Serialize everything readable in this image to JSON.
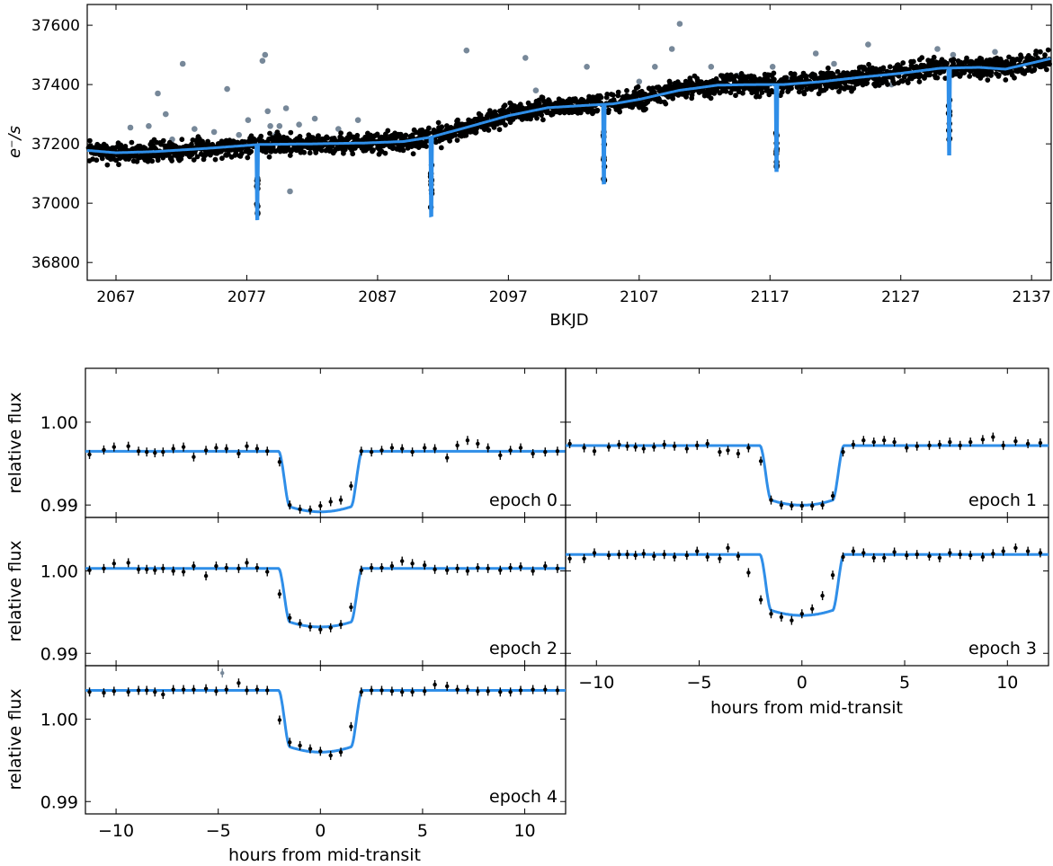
{
  "colors": {
    "model": "#2f8ee8",
    "data": "#000000",
    "outlier": "#778899",
    "axes": "#000000"
  },
  "chart_data": [
    {
      "type": "scatter",
      "title": "",
      "xlabel": "BKJD",
      "ylabel": "e⁻/s",
      "xlim": [
        2064.8,
        2138.5
      ],
      "ylim": [
        36740,
        37670
      ],
      "xticks": [
        2067,
        2077,
        2087,
        2097,
        2107,
        2117,
        2127,
        2137
      ],
      "xtick_labels": [
        "2067",
        "2077",
        "2087",
        "2097",
        "2107",
        "2117",
        "2127",
        "2137"
      ],
      "yticks": [
        36800,
        37000,
        37200,
        37400,
        37600
      ],
      "ytick_labels": [
        "36800",
        "37000",
        "37200",
        "37400",
        "37600"
      ],
      "grid": false,
      "series": [
        {
          "kind": "trend_model_line",
          "x": [
            2064.8,
            2067,
            2070,
            2074,
            2078,
            2082,
            2086,
            2089,
            2091,
            2094,
            2097,
            2100,
            2103,
            2105,
            2107,
            2110,
            2113,
            2116,
            2118,
            2121,
            2124,
            2127,
            2130,
            2133,
            2135,
            2138.5
          ],
          "y": [
            37178,
            37170,
            37174,
            37185,
            37198,
            37200,
            37203,
            37208,
            37222,
            37258,
            37295,
            37322,
            37330,
            37335,
            37350,
            37380,
            37398,
            37400,
            37400,
            37410,
            37425,
            37438,
            37455,
            37458,
            37452,
            37488
          ]
        },
        {
          "kind": "transit_dips",
          "transits": [
            {
              "x": 2077.8,
              "depth": 250
            },
            {
              "x": 2091.1,
              "depth": 265
            },
            {
              "x": 2104.3,
              "depth": 265
            },
            {
              "x": 2117.5,
              "depth": 290
            },
            {
              "x": 2130.7,
              "depth": 290
            }
          ]
        },
        {
          "kind": "outliers",
          "x": [
            2068.1,
            2069.5,
            2070.2,
            2070.8,
            2071.3,
            2072.1,
            2073.0,
            2074.5,
            2075.5,
            2076.4,
            2077.1,
            2078.2,
            2078.4,
            2078.6,
            2078.8,
            2079.2,
            2079.5,
            2080.0,
            2080.3,
            2081.0,
            2082.2,
            2084.0,
            2085.5,
            2093.8,
            2098.3,
            2099.1,
            2103.0,
            2107.0,
            2108.2,
            2109.5,
            2110.1,
            2112.5,
            2114.5,
            2117.2,
            2118.3,
            2120.5,
            2121.9,
            2124.5,
            2126.3,
            2129.8,
            2131.0,
            2134.2
          ],
          "y": [
            37255,
            37260,
            37370,
            37300,
            37215,
            37470,
            37250,
            37240,
            37385,
            37230,
            37280,
            37480,
            37500,
            37310,
            37260,
            37230,
            37260,
            37320,
            37040,
            37265,
            37285,
            37250,
            37280,
            37515,
            37490,
            37380,
            37460,
            37410,
            37460,
            37520,
            37605,
            37460,
            37430,
            37460,
            37420,
            37505,
            37470,
            37535,
            37400,
            37520,
            37500,
            37510
          ]
        }
      ]
    },
    {
      "type": "scatter",
      "title": "",
      "xlabel": "",
      "ylabel": "relative flux",
      "annotation": "epoch 0",
      "xlim": [
        -11.5,
        12
      ],
      "ylim": [
        0.9885,
        1.0065
      ],
      "yticks": [
        0.99,
        1.0
      ],
      "ytick_labels": [
        "0.99",
        "1.00"
      ],
      "xticks": [
        -10,
        -5,
        0,
        5,
        10
      ],
      "model": {
        "baseline": 0.99648,
        "depth": 0.0073,
        "half_duration": 2.0,
        "ingress": 0.5
      },
      "x": [
        -11.3,
        -10.6,
        -10.1,
        -9.4,
        -8.9,
        -8.5,
        -8.1,
        -7.7,
        -7.2,
        -6.7,
        -6.2,
        -5.6,
        -5.1,
        -4.6,
        -4.0,
        -3.6,
        -3.1,
        -2.6,
        -2.0,
        -1.5,
        -1.0,
        -0.5,
        0.0,
        0.5,
        1.0,
        1.5,
        2.0,
        2.5,
        3.0,
        3.5,
        4.0,
        4.5,
        5.1,
        5.6,
        6.2,
        6.7,
        7.2,
        7.7,
        8.2,
        8.8,
        9.3,
        9.8,
        10.4,
        11.0,
        11.6
      ],
      "y": [
        0.9961,
        0.99665,
        0.997,
        0.9971,
        0.9965,
        0.9964,
        0.9963,
        0.9964,
        0.9968,
        0.997,
        0.9958,
        0.9966,
        0.9969,
        0.9968,
        0.9962,
        0.9971,
        0.9968,
        0.9965,
        0.9952,
        0.99,
        0.9895,
        0.9894,
        0.9899,
        0.9904,
        0.9906,
        0.9923,
        0.9965,
        0.9964,
        0.9966,
        0.9969,
        0.9968,
        0.9964,
        0.9969,
        0.9968,
        0.9957,
        0.9972,
        0.9978,
        0.9974,
        0.9969,
        0.996,
        0.9966,
        0.9969,
        0.9962,
        0.9964,
        0.9965
      ]
    },
    {
      "type": "scatter",
      "title": "",
      "xlabel": "",
      "ylabel": "",
      "annotation": "epoch 1",
      "xlim": [
        -11.5,
        12
      ],
      "ylim": [
        0.9885,
        1.0065
      ],
      "yticks": [
        0.99,
        1.0
      ],
      "xticks": [
        -10,
        -5,
        0,
        5,
        10
      ],
      "model": {
        "baseline": 0.99718,
        "depth": 0.0072,
        "half_duration": 2.0,
        "ingress": 0.5
      },
      "x": [
        -11.3,
        -10.6,
        -10.1,
        -9.4,
        -8.9,
        -8.5,
        -8.1,
        -7.7,
        -7.2,
        -6.7,
        -6.2,
        -5.6,
        -5.1,
        -4.6,
        -4.0,
        -3.6,
        -3.1,
        -2.6,
        -2.0,
        -1.5,
        -1.0,
        -0.5,
        0.0,
        0.5,
        1.0,
        1.5,
        2.0,
        2.5,
        3.0,
        3.5,
        4.0,
        4.5,
        5.1,
        5.6,
        6.2,
        6.7,
        7.2,
        7.7,
        8.2,
        8.8,
        9.3,
        9.8,
        10.4,
        11.0,
        11.6
      ],
      "y": [
        0.9974,
        0.9969,
        0.9965,
        0.997,
        0.9973,
        0.9971,
        0.997,
        0.9968,
        0.997,
        0.9973,
        0.9971,
        0.9968,
        0.9972,
        0.9974,
        0.9964,
        0.9966,
        0.9962,
        0.9969,
        0.9953,
        0.9906,
        0.99,
        0.9899,
        0.9899,
        0.9899,
        0.99,
        0.9911,
        0.9964,
        0.9973,
        0.9978,
        0.9976,
        0.9978,
        0.9976,
        0.9969,
        0.9971,
        0.9972,
        0.9973,
        0.9976,
        0.9972,
        0.9976,
        0.9979,
        0.9982,
        0.9972,
        0.9977,
        0.9974,
        0.9975
      ]
    },
    {
      "type": "scatter",
      "title": "",
      "xlabel": "",
      "ylabel": "relative flux",
      "annotation": "epoch 2",
      "xlim": [
        -11.5,
        12
      ],
      "ylim": [
        0.9885,
        1.0065
      ],
      "yticks": [
        0.99,
        1.0
      ],
      "ytick_labels": [
        "0.99",
        "1.00"
      ],
      "xticks": [
        -10,
        -5,
        0,
        5,
        10
      ],
      "model": {
        "baseline": 1.0003,
        "depth": 0.0071,
        "half_duration": 2.0,
        "ingress": 0.5
      },
      "x": [
        -11.3,
        -10.6,
        -10.1,
        -9.4,
        -8.9,
        -8.5,
        -8.1,
        -7.7,
        -7.2,
        -6.7,
        -6.2,
        -5.6,
        -5.1,
        -4.6,
        -4.0,
        -3.6,
        -3.1,
        -2.6,
        -2.0,
        -1.5,
        -1.0,
        -0.5,
        0.0,
        0.5,
        1.0,
        1.5,
        2.0,
        2.5,
        3.0,
        3.5,
        4.0,
        4.5,
        5.1,
        5.6,
        6.2,
        6.7,
        7.2,
        7.7,
        8.2,
        8.8,
        9.3,
        9.8,
        10.4,
        11.0,
        11.6
      ],
      "y": [
        1.0001,
        1.0003,
        1.0009,
        1.001,
        1.0002,
        1.0002,
        1.0001,
        1.0003,
        1.0,
        0.9999,
        1.0006,
        0.9994,
        1.0006,
        1.0004,
        1.0003,
        1.001,
        1.0004,
        0.9999,
        0.9972,
        0.9943,
        0.9936,
        0.9932,
        0.9929,
        0.9931,
        0.9935,
        0.9956,
        1.0001,
        1.0004,
        1.0004,
        1.0006,
        1.0012,
        1.0009,
        1.0007,
        1.0002,
        1.0001,
        1.0003,
        1.0,
        1.0004,
        1.0003,
        1.0001,
        1.0004,
        1.0005,
        1.0,
        1.0006,
        1.0003
      ]
    },
    {
      "type": "scatter",
      "title": "",
      "xlabel": "hours from mid-transit",
      "ylabel": "",
      "annotation": "epoch 3",
      "xlim": [
        -11.5,
        12
      ],
      "ylim": [
        0.9885,
        1.0065
      ],
      "yticks": [
        0.99,
        1.0
      ],
      "xticks": [
        -10,
        -5,
        0,
        5,
        10
      ],
      "xtick_labels": [
        "−10",
        "−5",
        "0",
        "5",
        "10"
      ],
      "model": {
        "baseline": 1.002,
        "depth": 0.0074,
        "half_duration": 2.0,
        "ingress": 0.5
      },
      "x": [
        -11.3,
        -10.6,
        -10.1,
        -9.4,
        -8.9,
        -8.5,
        -8.1,
        -7.7,
        -7.2,
        -6.7,
        -6.2,
        -5.6,
        -5.1,
        -4.6,
        -4.0,
        -3.6,
        -3.1,
        -2.6,
        -2.0,
        -1.5,
        -1.0,
        -0.5,
        0.0,
        0.5,
        1.0,
        1.5,
        2.0,
        2.5,
        3.0,
        3.5,
        4.0,
        4.5,
        5.1,
        5.6,
        6.2,
        6.7,
        7.2,
        7.7,
        8.2,
        8.8,
        9.3,
        9.8,
        10.4,
        11.0,
        11.6
      ],
      "y": [
        1.0015,
        1.0015,
        1.0022,
        1.0019,
        1.002,
        1.002,
        1.0019,
        1.0021,
        1.0018,
        1.002,
        1.0017,
        1.0019,
        1.0024,
        1.0017,
        1.0015,
        1.0028,
        1.0018,
        0.9998,
        0.9965,
        0.9948,
        0.9944,
        0.994,
        0.9948,
        0.9954,
        0.997,
        0.9995,
        1.0017,
        1.0024,
        1.0022,
        1.0016,
        1.0016,
        1.0023,
        1.0019,
        1.002,
        1.0018,
        1.0016,
        1.0022,
        1.002,
        1.0019,
        1.0017,
        1.0021,
        1.0024,
        1.0028,
        1.0024,
        1.0022
      ]
    },
    {
      "type": "scatter",
      "title": "",
      "xlabel": "hours from mid-transit",
      "ylabel": "relative flux",
      "annotation": "epoch 4",
      "xlim": [
        -11.5,
        12
      ],
      "ylim": [
        0.9885,
        1.0065
      ],
      "yticks": [
        0.99,
        1.0
      ],
      "ytick_labels": [
        "0.99",
        "1.00"
      ],
      "xticks": [
        -10,
        -5,
        0,
        5,
        10
      ],
      "xtick_labels": [
        "−10",
        "−5",
        "0",
        "5",
        "10"
      ],
      "model": {
        "baseline": 1.0035,
        "depth": 0.0075,
        "half_duration": 2.0,
        "ingress": 0.5
      },
      "x": [
        -11.3,
        -10.6,
        -10.1,
        -9.4,
        -8.9,
        -8.5,
        -8.1,
        -7.7,
        -7.2,
        -6.7,
        -6.2,
        -5.6,
        -5.1,
        -4.6,
        -4.0,
        -3.6,
        -3.1,
        -2.6,
        -2.0,
        -1.5,
        -1.0,
        -0.5,
        0.0,
        0.5,
        1.0,
        1.5,
        2.0,
        2.5,
        3.0,
        3.5,
        4.0,
        4.5,
        5.1,
        5.6,
        6.2,
        6.7,
        7.2,
        7.7,
        8.2,
        8.8,
        9.3,
        9.8,
        10.4,
        11.0,
        11.6
      ],
      "y": [
        1.0033,
        1.0032,
        1.0034,
        1.0033,
        1.0035,
        1.0035,
        1.0033,
        1.003,
        1.0036,
        1.0036,
        1.0036,
        1.0037,
        1.0034,
        1.0036,
        1.0044,
        1.0035,
        1.0036,
        1.0035,
        0.9999,
        0.9972,
        0.9968,
        0.9964,
        0.9961,
        0.9956,
        0.996,
        0.9991,
        1.0033,
        1.0035,
        1.0035,
        1.0034,
        1.0033,
        1.0033,
        1.0034,
        1.0042,
        1.004,
        1.0036,
        1.0036,
        1.0034,
        1.0034,
        1.0033,
        1.0033,
        1.0035,
        1.0036,
        1.0036,
        1.0035
      ],
      "outliers": {
        "x": [
          -4.8
        ],
        "y": [
          1.0056
        ]
      }
    }
  ]
}
